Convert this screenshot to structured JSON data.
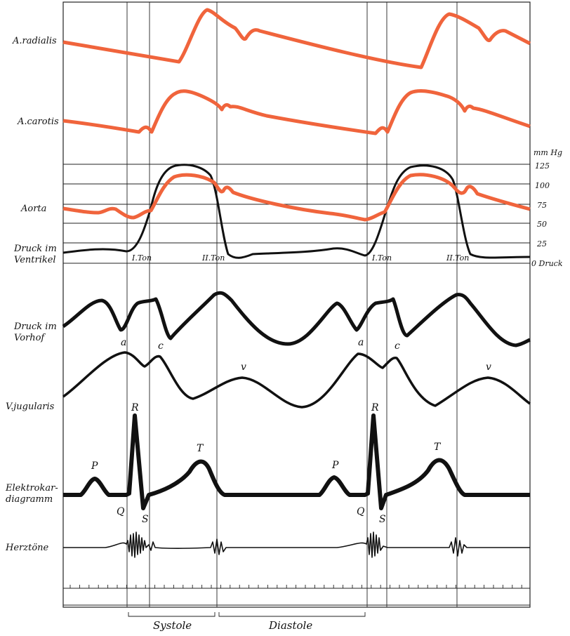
{
  "row_labels": {
    "radialis": "A.radialis",
    "carotis": "A.carotis",
    "aorta": "Aorta",
    "ventrikel_1": "Druck im",
    "ventrikel_2": "Ventrikel",
    "vorhof_1": "Druck im",
    "vorhof_2": "Vorhof",
    "jugularis": "V.jugularis",
    "ekg_1": "Elektrokar-",
    "ekg_2": "diagramm",
    "herztoene": "Herztöne"
  },
  "pressure_scale": {
    "unit": "mm Hg",
    "ticks": [
      "125",
      "100",
      "75",
      "50",
      "25"
    ],
    "zero": "0 Druck"
  },
  "heart_sounds": {
    "first_1": "I.Ton",
    "second_1": "II.Ton",
    "first_2": "I.Ton",
    "second_2": "II.Ton"
  },
  "wave_labels": {
    "a1": "a",
    "c1": "c",
    "v1": "v",
    "a2": "a",
    "c2": "c",
    "v2": "v",
    "p1": "P",
    "q1": "Q",
    "r1": "R",
    "s1": "S",
    "t1": "T",
    "p2": "P",
    "q2": "Q",
    "r2": "R",
    "s2": "S",
    "t2": "T"
  },
  "phases": {
    "systole": "Systole",
    "diastole": "Diastole"
  },
  "colors": {
    "arterial": "#f0643c",
    "trace": "#111111",
    "frame": "#222222"
  }
}
